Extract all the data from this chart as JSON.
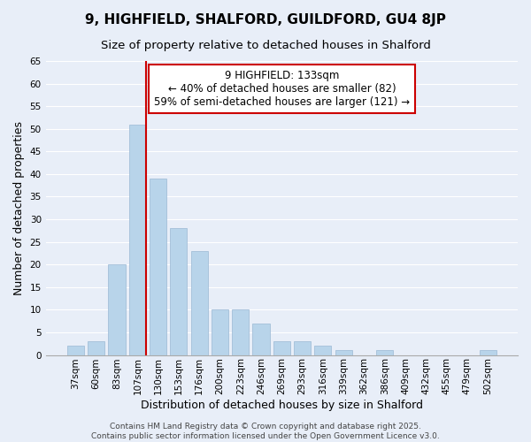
{
  "title": "9, HIGHFIELD, SHALFORD, GUILDFORD, GU4 8JP",
  "subtitle": "Size of property relative to detached houses in Shalford",
  "xlabel": "Distribution of detached houses by size in Shalford",
  "ylabel": "Number of detached properties",
  "bar_labels": [
    "37sqm",
    "60sqm",
    "83sqm",
    "107sqm",
    "130sqm",
    "153sqm",
    "176sqm",
    "200sqm",
    "223sqm",
    "246sqm",
    "269sqm",
    "293sqm",
    "316sqm",
    "339sqm",
    "362sqm",
    "386sqm",
    "409sqm",
    "432sqm",
    "455sqm",
    "479sqm",
    "502sqm"
  ],
  "bar_values": [
    2,
    3,
    20,
    51,
    39,
    28,
    23,
    10,
    10,
    7,
    3,
    3,
    2,
    1,
    0,
    1,
    0,
    0,
    0,
    0,
    1
  ],
  "bar_color": "#b8d4ea",
  "bar_edge_color": "#b8d4ea",
  "ylim": [
    0,
    65
  ],
  "yticks": [
    0,
    5,
    10,
    15,
    20,
    25,
    30,
    35,
    40,
    45,
    50,
    55,
    60,
    65
  ],
  "vline_color": "#cc0000",
  "annotation_title": "9 HIGHFIELD: 133sqm",
  "annotation_line1": "← 40% of detached houses are smaller (82)",
  "annotation_line2": "59% of semi-detached houses are larger (121) →",
  "annotation_box_color": "#ffffff",
  "annotation_box_edge": "#cc0000",
  "footer_line1": "Contains HM Land Registry data © Crown copyright and database right 2025.",
  "footer_line2": "Contains public sector information licensed under the Open Government Licence v3.0.",
  "background_color": "#e8eef8",
  "plot_background": "#e8eef8",
  "grid_color": "#ffffff",
  "title_fontsize": 11,
  "subtitle_fontsize": 9.5,
  "axis_label_fontsize": 9,
  "tick_fontsize": 7.5,
  "footer_fontsize": 6.5,
  "ann_fontsize": 8.5
}
